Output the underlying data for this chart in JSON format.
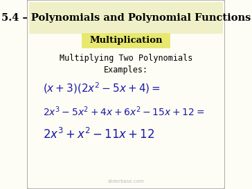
{
  "title": "5.4 – Polynomials and Polynomial Functions",
  "title_bg": "#f0f0c8",
  "subtitle": "Multiplication",
  "subtitle_bg": "#e8e870",
  "body_bg": "#fdfdf5",
  "border_color": "#aaaaaa",
  "text_color": "#000000",
  "math_color": "#1a1aaa",
  "heading_text": "Multiplying Two Polynomials",
  "subheading_text": "Examples:",
  "line1": "$(x+3)(2x^2-5x+4)=$",
  "line2": "$2x^3-5x^2+4x+6x^2-15x+12=$",
  "line3": "$2x^3+x^2-11x+12$"
}
